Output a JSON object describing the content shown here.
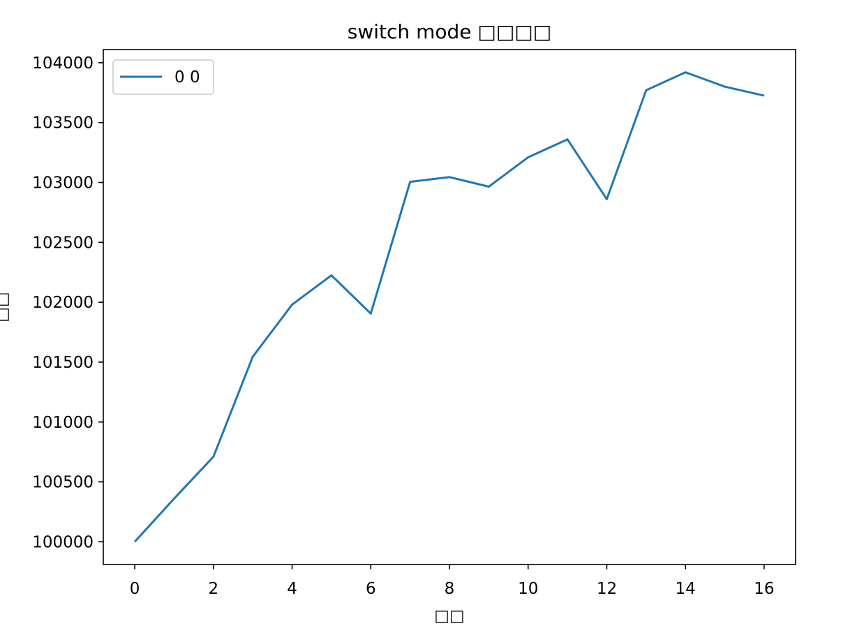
{
  "chart_data": {
    "type": "line",
    "title": "switch mode □□□□",
    "xlabel": "□□",
    "ylabel": "□□",
    "x": [
      0,
      1,
      2,
      3,
      4,
      5,
      6,
      7,
      8,
      9,
      10,
      11,
      12,
      13,
      14,
      15,
      16
    ],
    "series": [
      {
        "name": "0 0",
        "color": "#1f77b4",
        "values": [
          100000,
          100360,
          100710,
          101545,
          101980,
          102225,
          101905,
          103005,
          103045,
          102965,
          103210,
          103360,
          102860,
          103770,
          103920,
          103800,
          103725
        ]
      }
    ],
    "xlim": [
      -0.8,
      16.8
    ],
    "ylim": [
      99810,
      104110
    ],
    "xticks": [
      0,
      2,
      4,
      6,
      8,
      10,
      12,
      14,
      16
    ],
    "yticks": [
      100000,
      100500,
      101000,
      101500,
      102000,
      102500,
      103000,
      103500,
      104000
    ],
    "grid": false,
    "legend_position": "top-left"
  }
}
